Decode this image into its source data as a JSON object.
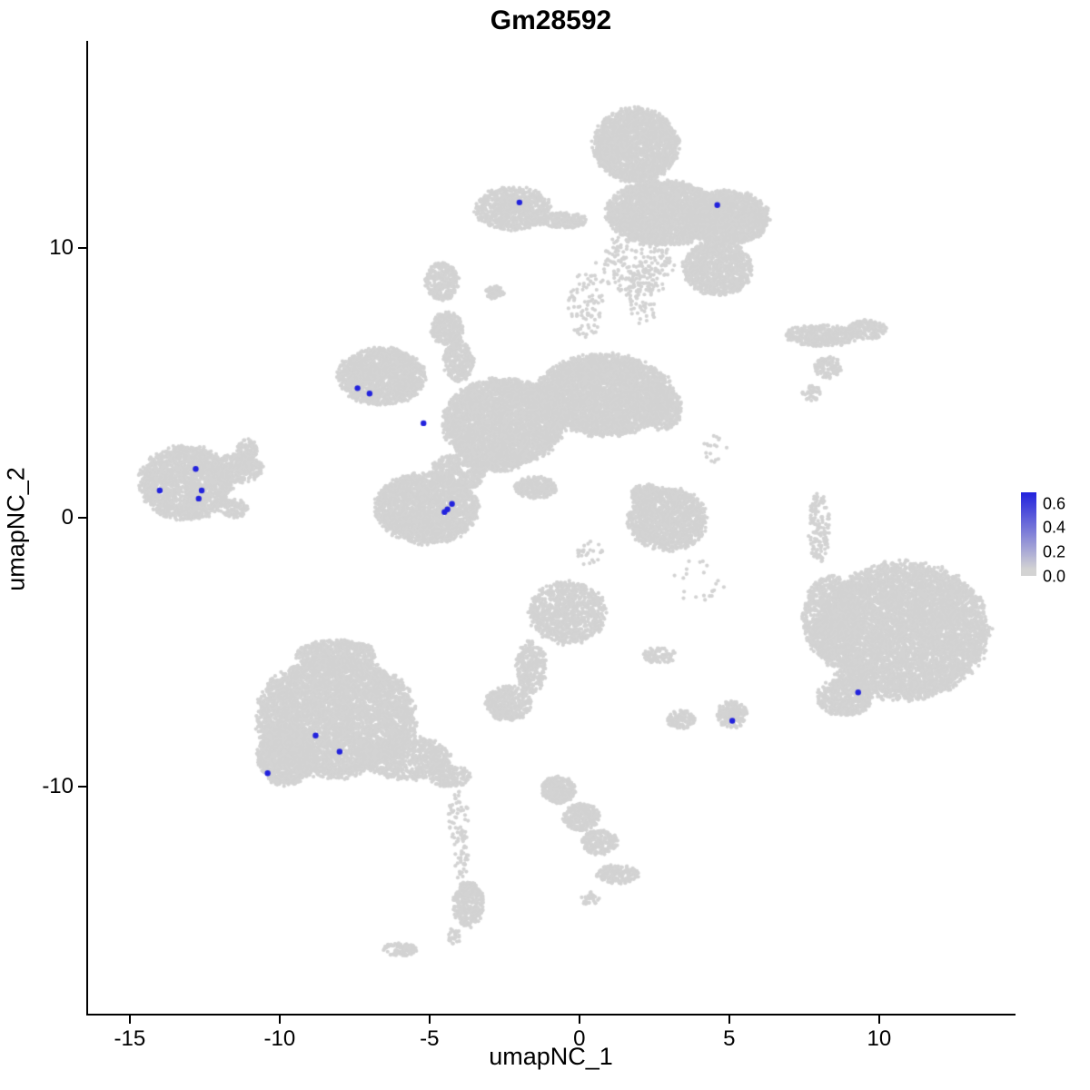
{
  "title": "Gm28592",
  "chart_data": {
    "type": "scatter",
    "subtype": "umap-feature-plot",
    "title": "Gm28592",
    "xlabel": "umapNC_1",
    "ylabel": "umapNC_2",
    "x_ticks": [
      -15,
      -10,
      -5,
      0,
      5,
      10
    ],
    "y_ticks": [
      -10,
      0,
      10
    ],
    "x_range": [
      -16.45,
      14.55
    ],
    "y_range": [
      -18.5,
      17.7
    ],
    "grid": false,
    "point_color_low": "#D3D3D3",
    "point_color_high": "#2222DD",
    "legend": {
      "position": "right",
      "tick_values": [
        0.6,
        0.4,
        0.2,
        0.0
      ],
      "tick_labels": [
        "0.6",
        "0.4",
        "0.2",
        "0.0"
      ],
      "max_value": 0.65
    },
    "cluster_format": [
      "center_x",
      "center_y",
      "radius_x",
      "radius_y",
      "n_cells"
    ],
    "background_clusters": [
      [
        1.88,
        13.83,
        1.4,
        1.35,
        2200
      ],
      [
        2.79,
        11.3,
        1.85,
        1.2,
        2800
      ],
      [
        4.91,
        11.13,
        1.4,
        1.0,
        1800
      ],
      [
        4.61,
        9.27,
        1.15,
        1.0,
        1000
      ],
      [
        1.88,
        9.38,
        1.3,
        1.2,
        220
      ],
      [
        -2.21,
        11.47,
        1.25,
        0.8,
        800
      ],
      [
        -0.55,
        11.03,
        0.8,
        0.28,
        200
      ],
      [
        -2.82,
        8.36,
        0.3,
        0.25,
        60
      ],
      [
        -4.58,
        8.77,
        0.55,
        0.7,
        280
      ],
      [
        0.21,
        7.93,
        0.6,
        1.3,
        90
      ],
      [
        2.12,
        8.26,
        0.5,
        1.1,
        70
      ],
      [
        8.09,
        6.75,
        1.25,
        0.4,
        420
      ],
      [
        9.61,
        6.98,
        0.65,
        0.35,
        200
      ],
      [
        8.3,
        5.56,
        0.45,
        0.4,
        130
      ],
      [
        7.73,
        4.62,
        0.3,
        0.3,
        40
      ],
      [
        -6.61,
        5.23,
        1.45,
        1.05,
        1700
      ],
      [
        -4.42,
        7.02,
        0.55,
        0.6,
        320
      ],
      [
        -4.03,
        5.8,
        0.5,
        0.75,
        280
      ],
      [
        -2.52,
        3.54,
        2.0,
        1.6,
        3800
      ],
      [
        0.82,
        4.55,
        2.25,
        1.5,
        4200
      ],
      [
        2.79,
        4.05,
        0.6,
        0.8,
        400
      ],
      [
        -2.82,
        2.19,
        1.0,
        0.5,
        500
      ],
      [
        -1.45,
        1.11,
        0.7,
        0.4,
        300
      ],
      [
        -5.09,
        0.34,
        1.7,
        1.3,
        2400
      ],
      [
        -4.03,
        1.69,
        0.9,
        0.7,
        450
      ],
      [
        -13.12,
        1.28,
        1.55,
        1.35,
        2000
      ],
      [
        -11.39,
        1.82,
        0.8,
        0.55,
        420
      ],
      [
        -11.09,
        2.5,
        0.35,
        0.4,
        90
      ],
      [
        -11.52,
        0.34,
        0.45,
        0.35,
        120
      ],
      [
        2.94,
        -0.07,
        1.3,
        1.15,
        1300
      ],
      [
        2.24,
        0.84,
        0.5,
        0.4,
        200
      ],
      [
        8.0,
        -0.34,
        0.35,
        1.3,
        140
      ],
      [
        4.0,
        -2.36,
        0.9,
        0.8,
        22
      ],
      [
        0.36,
        -1.35,
        0.5,
        0.5,
        25
      ],
      [
        4.61,
        2.53,
        0.5,
        0.6,
        18
      ],
      [
        -0.39,
        -3.54,
        1.25,
        1.15,
        1000
      ],
      [
        -1.61,
        -5.56,
        0.5,
        0.95,
        300
      ],
      [
        -2.36,
        -6.91,
        0.75,
        0.65,
        400
      ],
      [
        2.64,
        -5.13,
        0.6,
        0.3,
        90
      ],
      [
        3.39,
        -7.49,
        0.45,
        0.35,
        130
      ],
      [
        5.09,
        -7.32,
        0.5,
        0.5,
        200
      ],
      [
        -8.12,
        -7.42,
        2.6,
        2.2,
        5500
      ],
      [
        -9.79,
        -8.84,
        0.95,
        1.1,
        1100
      ],
      [
        -5.7,
        -8.94,
        1.35,
        0.8,
        800
      ],
      [
        -4.33,
        -9.61,
        0.7,
        0.4,
        200
      ],
      [
        -8.12,
        -5.13,
        1.3,
        0.6,
        600
      ],
      [
        -4.03,
        -11.13,
        0.35,
        0.9,
        50
      ],
      [
        10.82,
        -4.22,
        2.8,
        2.5,
        6500
      ],
      [
        8.39,
        -3.71,
        0.95,
        1.5,
        1000
      ],
      [
        8.85,
        -6.68,
        0.9,
        0.7,
        500
      ],
      [
        -0.7,
        -10.12,
        0.55,
        0.5,
        280
      ],
      [
        0.06,
        -11.13,
        0.6,
        0.5,
        280
      ],
      [
        0.67,
        -12.07,
        0.6,
        0.45,
        230
      ],
      [
        1.27,
        -13.25,
        0.7,
        0.35,
        180
      ],
      [
        0.36,
        -14.17,
        0.3,
        0.25,
        30
      ],
      [
        -3.7,
        -14.37,
        0.5,
        0.85,
        320
      ],
      [
        -3.94,
        -12.48,
        0.25,
        1.0,
        45
      ],
      [
        -4.18,
        -15.58,
        0.25,
        0.3,
        25
      ],
      [
        -6.0,
        -16.05,
        0.55,
        0.25,
        90
      ]
    ],
    "expressing_cells": [
      {
        "x": -2.0,
        "y": 11.7,
        "value": 0.6
      },
      {
        "x": 4.6,
        "y": 11.6,
        "value": 0.6
      },
      {
        "x": -7.4,
        "y": 4.8,
        "value": 0.6
      },
      {
        "x": -7.0,
        "y": 4.6,
        "value": 0.6
      },
      {
        "x": -5.2,
        "y": 3.5,
        "value": 0.6
      },
      {
        "x": -12.8,
        "y": 1.8,
        "value": 0.6
      },
      {
        "x": -14.0,
        "y": 1.0,
        "value": 0.6
      },
      {
        "x": -12.6,
        "y": 1.0,
        "value": 0.6
      },
      {
        "x": -12.7,
        "y": 0.7,
        "value": 0.6
      },
      {
        "x": -4.25,
        "y": 0.5,
        "value": 0.6
      },
      {
        "x": -4.4,
        "y": 0.3,
        "value": 0.6
      },
      {
        "x": -4.5,
        "y": 0.2,
        "value": 0.6
      },
      {
        "x": -8.8,
        "y": -8.1,
        "value": 0.6
      },
      {
        "x": -8.0,
        "y": -8.7,
        "value": 0.6
      },
      {
        "x": -10.4,
        "y": -9.5,
        "value": 0.6
      },
      {
        "x": 5.1,
        "y": -7.55,
        "value": 0.6
      },
      {
        "x": 9.3,
        "y": -6.5,
        "value": 0.6
      }
    ]
  }
}
